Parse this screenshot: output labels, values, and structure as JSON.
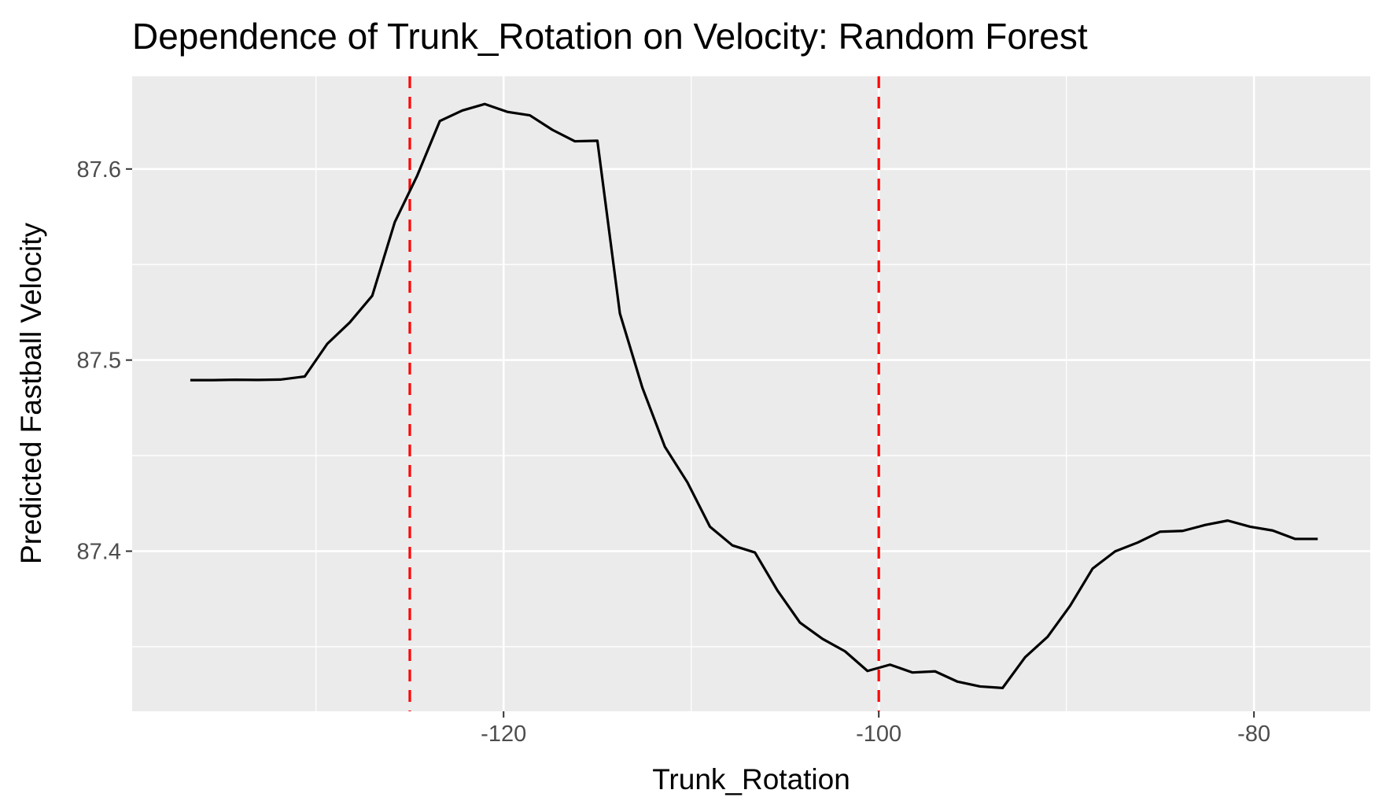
{
  "chart_data": {
    "type": "line",
    "title": "Dependence of Trunk_Rotation on Velocity: Random Forest",
    "xlabel": "Trunk_Rotation",
    "ylabel": "Predicted Fastball Velocity",
    "xlim": [
      -139.8,
      -73.8
    ],
    "ylim": [
      87.3162,
      87.6485
    ],
    "x_ticks": [
      -120,
      -100,
      -80
    ],
    "x_tick_labels": [
      "-120",
      "-100",
      "-80"
    ],
    "x_minor_ticks": [
      -130,
      -110,
      -90
    ],
    "y_ticks": [
      87.4,
      87.5,
      87.6
    ],
    "y_tick_labels": [
      "87.4",
      "87.5",
      "87.6"
    ],
    "y_minor_ticks": [
      87.35,
      87.45,
      87.55
    ],
    "grid": true,
    "background": "#ebebeb",
    "line_color": "#000000",
    "reference_lines": [
      {
        "x": -125.0,
        "color": "#ff0000",
        "style": "dashed"
      },
      {
        "x": -100.0,
        "color": "#ff0000",
        "style": "dashed"
      }
    ],
    "series": [
      {
        "x": [
          -136.7,
          -135.5,
          -134.3,
          -133.1,
          -131.9,
          -130.6,
          -129.4,
          -128.2,
          -127.0,
          -125.8,
          -124.6,
          -123.4,
          -122.2,
          -121.0,
          -119.8,
          -118.6,
          -117.4,
          -116.2,
          -115.0,
          -113.8,
          -112.6,
          -111.4,
          -110.2,
          -109.0,
          -107.8,
          -106.6,
          -105.4,
          -104.2,
          -103.0,
          -101.8,
          -100.6,
          -99.4,
          -98.2,
          -97.0,
          -95.8,
          -94.6,
          -93.4,
          -92.2,
          -91.0,
          -89.8,
          -88.6,
          -87.4,
          -86.2,
          -85.0,
          -83.8,
          -82.6,
          -81.4,
          -80.2,
          -79.0,
          -77.8,
          -76.6
        ],
        "y": [
          87.4895,
          87.4895,
          87.4897,
          87.4896,
          87.4898,
          87.4914,
          87.5085,
          87.5197,
          87.5337,
          87.5722,
          87.5966,
          87.6251,
          87.6306,
          87.634,
          87.6299,
          87.6281,
          87.6205,
          87.6145,
          87.6148,
          87.5244,
          87.4855,
          87.4546,
          87.436,
          87.4128,
          87.403,
          87.3993,
          87.3794,
          87.3626,
          87.3541,
          87.3476,
          87.3373,
          87.3406,
          87.3365,
          87.3371,
          87.3317,
          87.3292,
          87.3284,
          87.3445,
          87.3552,
          87.3714,
          87.3909,
          87.3999,
          87.4045,
          87.4102,
          87.4106,
          87.4137,
          87.416,
          87.4128,
          87.4108,
          87.4064,
          87.4064
        ]
      }
    ]
  }
}
